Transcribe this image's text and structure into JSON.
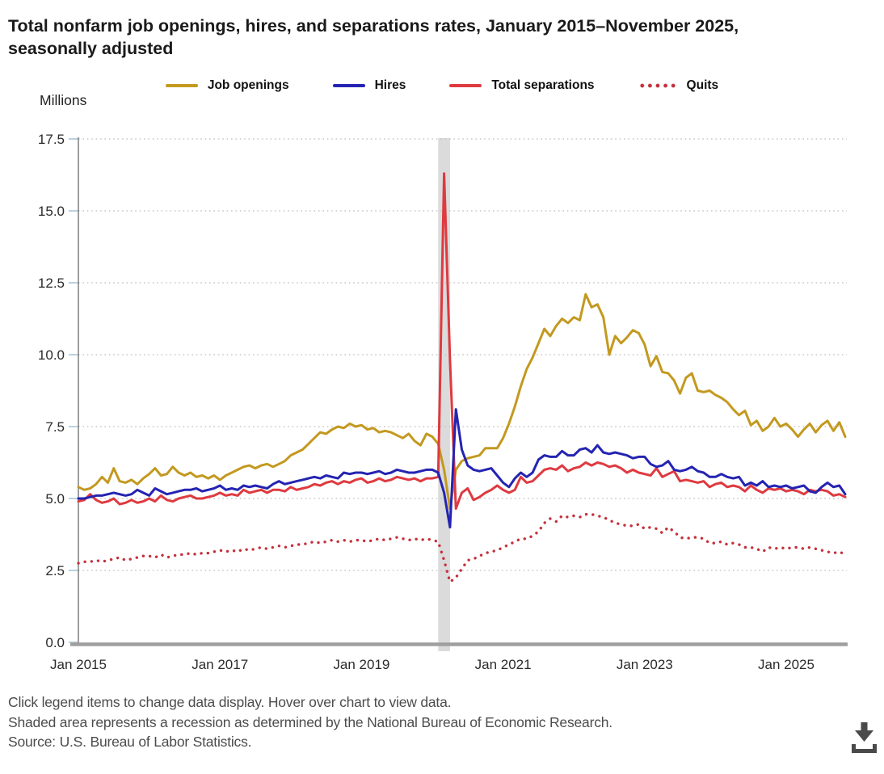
{
  "page": {
    "title": "Total nonfarm job openings, hires, and separations rates, January 2015–November 2025, seasonally adjusted"
  },
  "footer": {
    "lines": [
      "Click legend items to change data display. Hover over chart to view data.",
      "Shaded area represents a recession as determined by the National Bureau of Economic Research.",
      "Source: U.S. Bureau of Labor Statistics."
    ]
  },
  "icons": {
    "download": "download-icon"
  },
  "colors": {
    "job_openings": "#C3991F",
    "hires": "#2424B2",
    "total_separations": "#DE3A40",
    "quits": "#C4313C",
    "recession_band": "#DBDBDB",
    "gridline": "#BDBDBD",
    "axis": "#9F9F9F",
    "tick": "#A9C6D6"
  },
  "chart_data": {
    "type": "line",
    "title": "Total nonfarm job openings, hires, and separations rates, January 2015–November 2025, seasonally adjusted",
    "unit_label": "Millions",
    "x_start": "2015-01",
    "x_end": "2025-11",
    "x_tick_labels": [
      "Jan 2015",
      "Jan 2017",
      "Jan 2019",
      "Jan 2021",
      "Jan 2023",
      "Jan 2025"
    ],
    "x_tick_month_step": 24,
    "y_ticks": [
      0.0,
      2.5,
      5.0,
      7.5,
      10.0,
      12.5,
      15.0,
      17.5
    ],
    "ylim": [
      0,
      17.5
    ],
    "grid": "dotted-horizontal",
    "legend_position": "top",
    "recession_band": {
      "start": "2020-02",
      "end": "2020-04",
      "start_month_index": 61,
      "end_month_index": 63,
      "note": "Shaded area represents a recession as determined by the National Bureau of Economic Research."
    },
    "series": [
      {
        "name": "Job openings",
        "color": "#C3991F",
        "style": "solid",
        "values": [
          5.4,
          5.3,
          5.35,
          5.5,
          5.75,
          5.55,
          6.05,
          5.6,
          5.55,
          5.65,
          5.5,
          5.7,
          5.85,
          6.05,
          5.8,
          5.85,
          6.1,
          5.9,
          5.8,
          5.9,
          5.75,
          5.8,
          5.7,
          5.8,
          5.65,
          5.8,
          5.9,
          6.0,
          6.1,
          6.15,
          6.05,
          6.15,
          6.2,
          6.1,
          6.2,
          6.3,
          6.5,
          6.6,
          6.7,
          6.9,
          7.1,
          7.3,
          7.25,
          7.4,
          7.5,
          7.45,
          7.6,
          7.5,
          7.55,
          7.4,
          7.45,
          7.3,
          7.35,
          7.3,
          7.2,
          7.1,
          7.25,
          7.0,
          6.85,
          7.25,
          7.15,
          6.9,
          6.0,
          4.65,
          6.0,
          6.3,
          6.4,
          6.45,
          6.5,
          6.75,
          6.75,
          6.75,
          7.1,
          7.6,
          8.2,
          8.9,
          9.5,
          9.9,
          10.4,
          10.9,
          10.65,
          11.0,
          11.25,
          11.1,
          11.3,
          11.2,
          12.1,
          11.65,
          11.75,
          11.3,
          10.0,
          10.65,
          10.4,
          10.6,
          10.85,
          10.75,
          10.35,
          9.6,
          9.95,
          9.4,
          9.35,
          9.1,
          8.65,
          9.2,
          9.35,
          8.75,
          8.7,
          8.75,
          8.6,
          8.5,
          8.35,
          8.1,
          7.9,
          8.05,
          7.55,
          7.7,
          7.35,
          7.5,
          7.8,
          7.5,
          7.6,
          7.4,
          7.15,
          7.4,
          7.6,
          7.3,
          7.55,
          7.7,
          7.35,
          7.65,
          7.15
        ]
      },
      {
        "name": "Hires",
        "color": "#2424B2",
        "style": "solid",
        "values": [
          5.0,
          5.0,
          5.05,
          5.1,
          5.1,
          5.15,
          5.2,
          5.15,
          5.1,
          5.15,
          5.3,
          5.2,
          5.1,
          5.35,
          5.25,
          5.15,
          5.2,
          5.25,
          5.3,
          5.3,
          5.35,
          5.25,
          5.3,
          5.35,
          5.45,
          5.3,
          5.35,
          5.3,
          5.45,
          5.4,
          5.45,
          5.4,
          5.35,
          5.5,
          5.6,
          5.5,
          5.55,
          5.6,
          5.65,
          5.7,
          5.75,
          5.7,
          5.8,
          5.75,
          5.7,
          5.9,
          5.85,
          5.9,
          5.9,
          5.85,
          5.9,
          5.95,
          5.85,
          5.9,
          6.0,
          5.95,
          5.9,
          5.9,
          5.95,
          6.0,
          6.0,
          5.9,
          5.2,
          4.0,
          8.1,
          6.7,
          6.15,
          6.0,
          5.95,
          6.0,
          6.05,
          5.8,
          5.55,
          5.4,
          5.7,
          5.9,
          5.75,
          5.9,
          6.35,
          6.5,
          6.45,
          6.45,
          6.65,
          6.5,
          6.5,
          6.7,
          6.75,
          6.6,
          6.85,
          6.6,
          6.55,
          6.6,
          6.55,
          6.5,
          6.4,
          6.45,
          6.45,
          6.2,
          6.1,
          6.15,
          6.3,
          6.0,
          5.95,
          6.0,
          6.1,
          5.95,
          5.9,
          5.75,
          5.75,
          5.85,
          5.75,
          5.7,
          5.75,
          5.45,
          5.55,
          5.45,
          5.6,
          5.4,
          5.45,
          5.4,
          5.45,
          5.35,
          5.4,
          5.45,
          5.25,
          5.2,
          5.4,
          5.55,
          5.4,
          5.45,
          5.15
        ]
      },
      {
        "name": "Total separations",
        "color": "#DE3A40",
        "style": "solid",
        "values": [
          4.9,
          4.95,
          5.15,
          4.95,
          4.85,
          4.9,
          5.0,
          4.8,
          4.85,
          4.95,
          4.85,
          4.9,
          5.0,
          4.9,
          5.1,
          4.95,
          4.9,
          5.0,
          5.05,
          5.1,
          5.0,
          5.0,
          5.05,
          5.1,
          5.2,
          5.1,
          5.15,
          5.1,
          5.3,
          5.2,
          5.25,
          5.3,
          5.2,
          5.3,
          5.3,
          5.25,
          5.4,
          5.3,
          5.35,
          5.4,
          5.5,
          5.45,
          5.55,
          5.6,
          5.5,
          5.6,
          5.55,
          5.65,
          5.7,
          5.55,
          5.6,
          5.7,
          5.6,
          5.65,
          5.75,
          5.7,
          5.65,
          5.7,
          5.6,
          5.7,
          5.7,
          5.75,
          16.3,
          9.8,
          4.65,
          5.2,
          5.35,
          4.95,
          5.05,
          5.2,
          5.3,
          5.45,
          5.3,
          5.2,
          5.3,
          5.75,
          5.55,
          5.6,
          5.8,
          6.0,
          6.05,
          6.0,
          6.15,
          5.95,
          6.05,
          6.1,
          6.25,
          6.15,
          6.25,
          6.2,
          6.1,
          6.15,
          6.05,
          5.9,
          6.0,
          5.9,
          5.85,
          5.8,
          6.05,
          5.75,
          5.85,
          5.95,
          5.6,
          5.65,
          5.6,
          5.55,
          5.6,
          5.4,
          5.5,
          5.55,
          5.4,
          5.45,
          5.4,
          5.25,
          5.45,
          5.3,
          5.2,
          5.35,
          5.3,
          5.35,
          5.25,
          5.3,
          5.25,
          5.15,
          5.3,
          5.25,
          5.3,
          5.25,
          5.1,
          5.15,
          5.05
        ]
      },
      {
        "name": "Quits",
        "color": "#C4313C",
        "style": "dotted",
        "values": [
          2.75,
          2.8,
          2.8,
          2.85,
          2.8,
          2.85,
          2.9,
          2.95,
          2.85,
          2.9,
          2.95,
          3.0,
          3.0,
          2.95,
          3.05,
          2.95,
          3.0,
          3.05,
          3.05,
          3.1,
          3.05,
          3.1,
          3.1,
          3.15,
          3.2,
          3.15,
          3.2,
          3.15,
          3.25,
          3.2,
          3.25,
          3.3,
          3.25,
          3.3,
          3.35,
          3.3,
          3.35,
          3.4,
          3.4,
          3.45,
          3.5,
          3.45,
          3.5,
          3.55,
          3.5,
          3.55,
          3.5,
          3.55,
          3.55,
          3.5,
          3.55,
          3.6,
          3.55,
          3.6,
          3.65,
          3.6,
          3.55,
          3.6,
          3.55,
          3.6,
          3.55,
          3.5,
          2.85,
          2.1,
          2.25,
          2.55,
          2.85,
          2.9,
          3.0,
          3.1,
          3.15,
          3.2,
          3.3,
          3.4,
          3.5,
          3.6,
          3.6,
          3.7,
          3.85,
          4.15,
          4.3,
          4.2,
          4.4,
          4.35,
          4.4,
          4.35,
          4.45,
          4.45,
          4.4,
          4.35,
          4.25,
          4.15,
          4.1,
          4.05,
          4.05,
          4.1,
          3.95,
          4.0,
          3.95,
          3.8,
          4.0,
          3.85,
          3.65,
          3.6,
          3.65,
          3.65,
          3.6,
          3.45,
          3.45,
          3.5,
          3.4,
          3.45,
          3.4,
          3.3,
          3.3,
          3.25,
          3.15,
          3.3,
          3.25,
          3.3,
          3.25,
          3.3,
          3.3,
          3.25,
          3.3,
          3.25,
          3.2,
          3.15,
          3.1,
          3.15,
          3.05
        ]
      }
    ]
  }
}
